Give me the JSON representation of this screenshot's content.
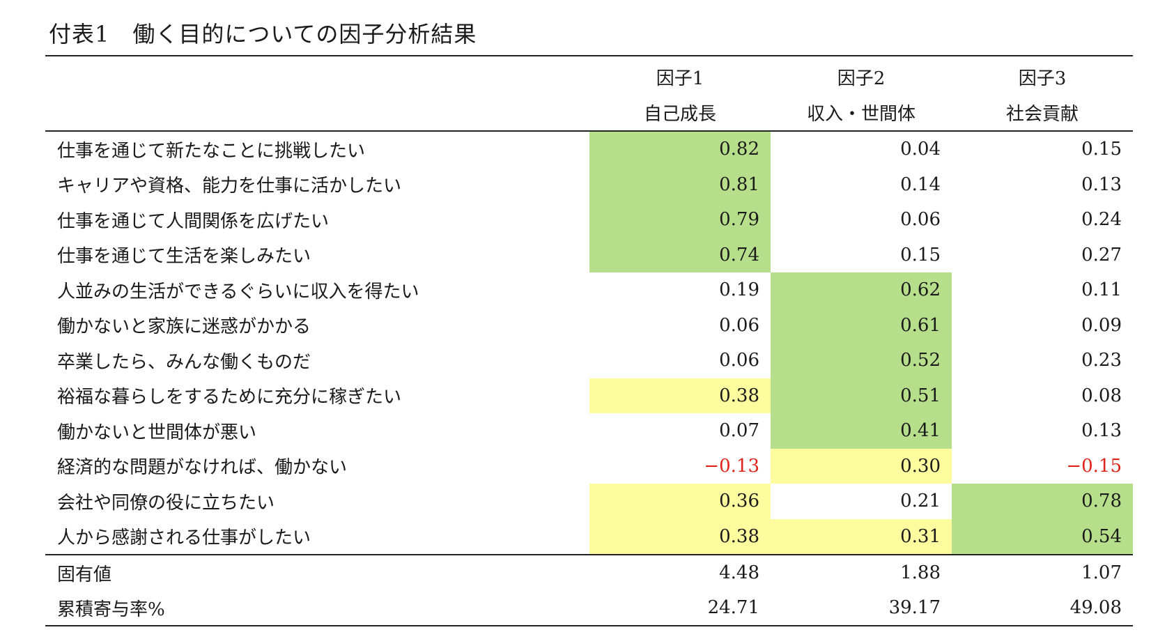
{
  "title": "付表1　働く目的についての因子分析結果",
  "header": {
    "factors": [
      {
        "label": "因子1",
        "name": "自己成長"
      },
      {
        "label": "因子2",
        "name": "収入・世間体"
      },
      {
        "label": "因子3",
        "name": "社会貢献"
      }
    ]
  },
  "rows": [
    {
      "label": "仕事を通じて新たなことに挑戦したい",
      "values": [
        "0.82",
        "0.04",
        "0.15"
      ],
      "highlight": [
        "green",
        "none",
        "none"
      ]
    },
    {
      "label": "キャリアや資格、能力を仕事に活かしたい",
      "values": [
        "0.81",
        "0.14",
        "0.13"
      ],
      "highlight": [
        "green",
        "none",
        "none"
      ]
    },
    {
      "label": "仕事を通じて人間関係を広げたい",
      "values": [
        "0.79",
        "0.06",
        "0.24"
      ],
      "highlight": [
        "green",
        "none",
        "none"
      ]
    },
    {
      "label": "仕事を通じて生活を楽しみたい",
      "values": [
        "0.74",
        "0.15",
        "0.27"
      ],
      "highlight": [
        "green",
        "none",
        "none"
      ]
    },
    {
      "label": "人並みの生活ができるぐらいに収入を得たい",
      "values": [
        "0.19",
        "0.62",
        "0.11"
      ],
      "highlight": [
        "none",
        "green",
        "none"
      ]
    },
    {
      "label": "働かないと家族に迷惑がかかる",
      "values": [
        "0.06",
        "0.61",
        "0.09"
      ],
      "highlight": [
        "none",
        "green",
        "none"
      ]
    },
    {
      "label": "卒業したら、みんな働くものだ",
      "values": [
        "0.06",
        "0.52",
        "0.23"
      ],
      "highlight": [
        "none",
        "green",
        "none"
      ]
    },
    {
      "label": "裕福な暮らしをするために充分に稼ぎたい",
      "values": [
        "0.38",
        "0.51",
        "0.08"
      ],
      "highlight": [
        "yellow",
        "green",
        "none"
      ]
    },
    {
      "label": "働かないと世間体が悪い",
      "values": [
        "0.07",
        "0.41",
        "0.13"
      ],
      "highlight": [
        "none",
        "green",
        "none"
      ]
    },
    {
      "label": "経済的な問題がなければ、働かない",
      "values": [
        "−0.13",
        "0.30",
        "−0.15"
      ],
      "highlight": [
        "none",
        "yellow",
        "none"
      ]
    },
    {
      "label": "会社や同僚の役に立ちたい",
      "values": [
        "0.36",
        "0.21",
        "0.78"
      ],
      "highlight": [
        "yellow",
        "none",
        "green"
      ]
    },
    {
      "label": "人から感謝される仕事がしたい",
      "values": [
        "0.38",
        "0.31",
        "0.54"
      ],
      "highlight": [
        "yellow",
        "yellow",
        "green"
      ]
    }
  ],
  "summary": [
    {
      "label": "固有値",
      "values": [
        "4.48",
        "1.88",
        "1.07"
      ]
    },
    {
      "label": "累積寄与率%",
      "values": [
        "24.71",
        "39.17",
        "49.08"
      ]
    }
  ],
  "colors": {
    "green": "#b7de8a",
    "yellow": "#fdfda0",
    "negative": "#e0231b",
    "rule": "#222222"
  }
}
